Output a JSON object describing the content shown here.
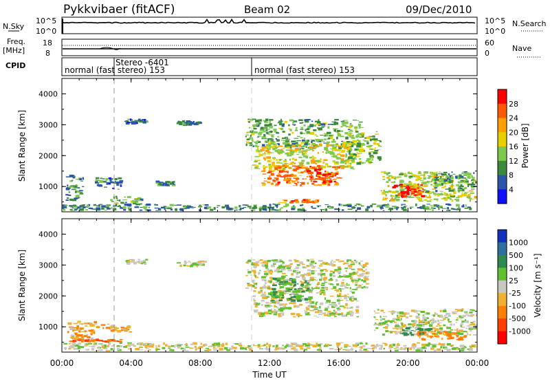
{
  "header": {
    "title": "Pykkvibaer (fitACF)",
    "beam": "Beam 02",
    "date": "09/Dec/2010"
  },
  "noise_panel": {
    "left_label": "N.Sky",
    "right_label": "N.Search",
    "left_ticks": [
      "10^5",
      "10^0"
    ],
    "right_ticks": [
      "10^5",
      "10^0"
    ]
  },
  "freq_panel": {
    "left_label_1": "Freq.",
    "left_label_2": "[MHz]",
    "right_label": "Nave",
    "left_ticks": [
      "18",
      "8"
    ],
    "right_ticks": [
      "60",
      "0"
    ]
  },
  "cpid_panel": {
    "label": "CPID",
    "stereo_label": "Stereo -6401",
    "mode_1": "normal (fast stereo) 153",
    "mode_2": "normal (fast stereo) 153"
  },
  "chart_data": [
    {
      "type": "heatmap",
      "name": "power",
      "ylabel": "Slant Range [km]",
      "yticks": [
        "4000",
        "3000",
        "2000",
        "1000"
      ],
      "ylim": [
        180,
        4500
      ],
      "xlim": [
        0,
        24
      ],
      "colorbar_label": "Power [dB]",
      "colorbar_ticks": [
        "28",
        "24",
        "20",
        "16",
        "12",
        "8",
        "4"
      ],
      "colorbar_colors": [
        "#ff0000",
        "#ff5a00",
        "#ffa000",
        "#e8d000",
        "#7ec850",
        "#3a8a3a",
        "#2a55a8",
        "#1010ff"
      ],
      "regions": [
        {
          "t0": 0.2,
          "t1": 1.3,
          "r0": 500,
          "r1": 1400,
          "level": 8
        },
        {
          "t0": 1.8,
          "t1": 3.6,
          "r0": 900,
          "r1": 1300,
          "level": 6
        },
        {
          "t0": 2.6,
          "t1": 4.8,
          "r0": 400,
          "r1": 700,
          "level": 10
        },
        {
          "t0": 0.0,
          "t1": 24.0,
          "r0": 200,
          "r1": 450,
          "level": 7
        },
        {
          "t0": 5.4,
          "t1": 6.6,
          "r0": 1000,
          "r1": 1200,
          "level": 8
        },
        {
          "t0": 3.6,
          "t1": 5.0,
          "r0": 3000,
          "r1": 3200,
          "level": 6
        },
        {
          "t0": 6.6,
          "t1": 8.1,
          "r0": 2950,
          "r1": 3150,
          "level": 7
        },
        {
          "t0": 10.6,
          "t1": 17.5,
          "r0": 2200,
          "r1": 3200,
          "level": 10
        },
        {
          "t0": 11.0,
          "t1": 17.0,
          "r0": 1500,
          "r1": 2400,
          "level": 16
        },
        {
          "t0": 11.5,
          "t1": 16.2,
          "r0": 1000,
          "r1": 1700,
          "level": 22
        },
        {
          "t0": 14.0,
          "t1": 16.0,
          "r0": 1100,
          "r1": 1500,
          "level": 26
        },
        {
          "t0": 12.5,
          "t1": 15.0,
          "r0": 450,
          "r1": 600,
          "level": 22
        },
        {
          "t0": 16.5,
          "t1": 18.5,
          "r0": 1700,
          "r1": 2800,
          "level": 12
        },
        {
          "t0": 18.4,
          "t1": 24.0,
          "r0": 500,
          "r1": 1500,
          "level": 14
        },
        {
          "t0": 19.0,
          "t1": 21.0,
          "r0": 600,
          "r1": 1100,
          "level": 26
        },
        {
          "t0": 21.5,
          "t1": 24.0,
          "r0": 800,
          "r1": 1500,
          "level": 8
        }
      ]
    },
    {
      "type": "heatmap",
      "name": "velocity",
      "ylabel": "Slant Range [km]",
      "yticks": [
        "4000",
        "3000",
        "2000",
        "1000"
      ],
      "ylim": [
        180,
        4500
      ],
      "xlim": [
        0,
        24
      ],
      "xlabel": "Time UT",
      "xticks": [
        "00:00",
        "04:00",
        "08:00",
        "12:00",
        "16:00",
        "20:00",
        "00:00"
      ],
      "colorbar_label": "Velocity [m s⁻¹]",
      "colorbar_ticks": [
        "1000",
        "500",
        "100",
        "25",
        "-25",
        "-100",
        "-500",
        "-1000"
      ],
      "colorbar_colors": [
        "#1030c0",
        "#2e6fa0",
        "#2e8a50",
        "#60c030",
        "#c8c8c0",
        "#f0b030",
        "#ff8000",
        "#ff4000",
        "#ff0000"
      ],
      "regions": [
        {
          "t0": 0.0,
          "t1": 24.0,
          "r0": 200,
          "r1": 500,
          "level": 0
        },
        {
          "t0": 0.3,
          "t1": 2.2,
          "r0": 500,
          "r1": 1200,
          "level": -60
        },
        {
          "t0": 0.6,
          "t1": 3.6,
          "r0": 480,
          "r1": 620,
          "level": -300
        },
        {
          "t0": 2.2,
          "t1": 4.2,
          "r0": 800,
          "r1": 1100,
          "level": -50
        },
        {
          "t0": 3.6,
          "t1": 5.0,
          "r0": 3000,
          "r1": 3200,
          "level": 0
        },
        {
          "t0": 6.5,
          "t1": 8.4,
          "r0": 2900,
          "r1": 3150,
          "level": 0
        },
        {
          "t0": 10.6,
          "t1": 17.8,
          "r0": 2200,
          "r1": 3200,
          "level": 0
        },
        {
          "t0": 11.0,
          "t1": 17.2,
          "r0": 1300,
          "r1": 2300,
          "level": 0
        },
        {
          "t0": 12.0,
          "t1": 14.5,
          "r0": 1800,
          "r1": 2600,
          "level": 60
        },
        {
          "t0": 18.0,
          "t1": 24.0,
          "r0": 700,
          "r1": 1600,
          "level": 0
        },
        {
          "t0": 20.5,
          "t1": 23.5,
          "r0": 550,
          "r1": 900,
          "level": -80
        },
        {
          "t0": 19.5,
          "t1": 21.5,
          "r0": 700,
          "r1": 1000,
          "level": 200
        }
      ]
    }
  ]
}
